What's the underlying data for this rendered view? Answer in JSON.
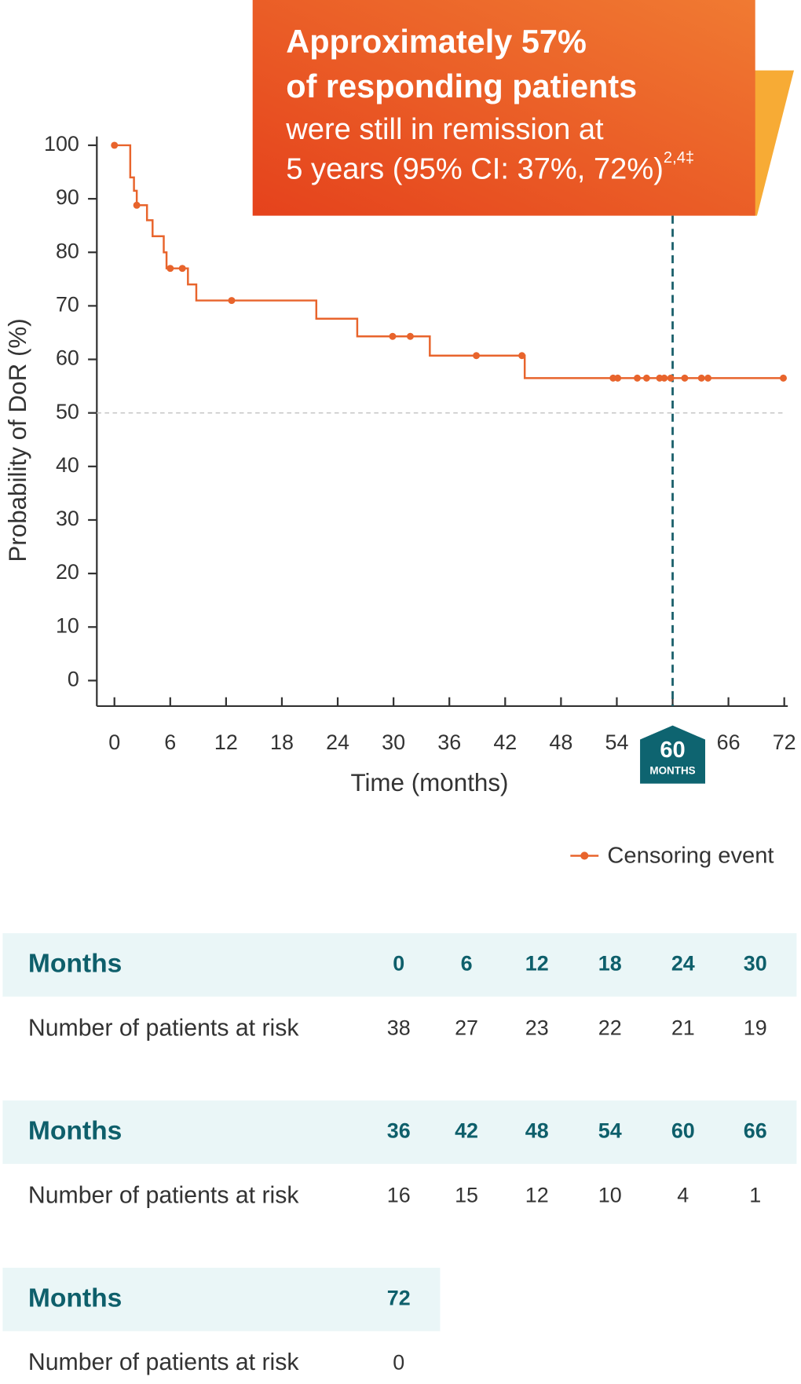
{
  "chart_data": {
    "type": "step",
    "callout": {
      "lines": [
        "Approximately 57%",
        "of responding patients",
        "were still in remission at",
        "5 years (95% CI: 37%, 72%)"
      ],
      "superscript": "2,4‡"
    },
    "y_label": "Probability of DoR (%)",
    "x_label": "Time (months)",
    "xlim": [
      0,
      72
    ],
    "ylim": [
      0,
      100
    ],
    "xticks": [
      0,
      6,
      12,
      18,
      24,
      30,
      36,
      42,
      48,
      54,
      60,
      66,
      72
    ],
    "yticks": [
      0,
      10,
      20,
      30,
      40,
      50,
      60,
      70,
      80,
      90,
      100
    ],
    "highlight_x": 60,
    "highlight_x_caption": "MONTHS",
    "reference_y": 50,
    "series": [
      {
        "name": "DoR",
        "color": "#e8642c",
        "x": [
          0,
          1.7,
          2.1,
          2.4,
          3.5,
          4.1,
          5.3,
          5.6,
          7.9,
          8.8,
          21.7,
          26.1,
          33.9,
          44.1,
          72
        ],
        "values": [
          100,
          94,
          91.5,
          88.8,
          86,
          83,
          80,
          77,
          74,
          71,
          67.6,
          64.3,
          60.7,
          56.5,
          56.5
        ]
      },
      {
        "name": "Censoring event",
        "type": "scatter",
        "color": "#e8642c",
        "x": [
          0,
          2.4,
          6,
          7.3,
          12.6,
          29.9,
          31.8,
          38.9,
          43.8,
          53.6,
          54.1,
          56.2,
          57.2,
          58.6,
          59.1,
          59.8,
          61.3,
          63.1,
          63.8,
          71.9
        ],
        "values": [
          100,
          88.8,
          77,
          77,
          71,
          64.3,
          64.3,
          60.7,
          60.7,
          56.5,
          56.5,
          56.5,
          56.5,
          56.5,
          56.5,
          56.5,
          56.5,
          56.5,
          56.5,
          56.5
        ]
      }
    ]
  },
  "tables": [
    {
      "header": [
        "Months",
        0,
        6,
        12,
        18,
        24,
        30
      ],
      "row": [
        "Number of patients at risk",
        38,
        27,
        23,
        22,
        21,
        19
      ]
    },
    {
      "header": [
        "Months",
        36,
        42,
        48,
        54,
        60,
        66
      ],
      "row": [
        "Number of patients at risk",
        16,
        15,
        12,
        10,
        4,
        1
      ]
    },
    {
      "header": [
        "Months",
        72
      ],
      "row": [
        "Number of patients at risk",
        0
      ]
    }
  ]
}
